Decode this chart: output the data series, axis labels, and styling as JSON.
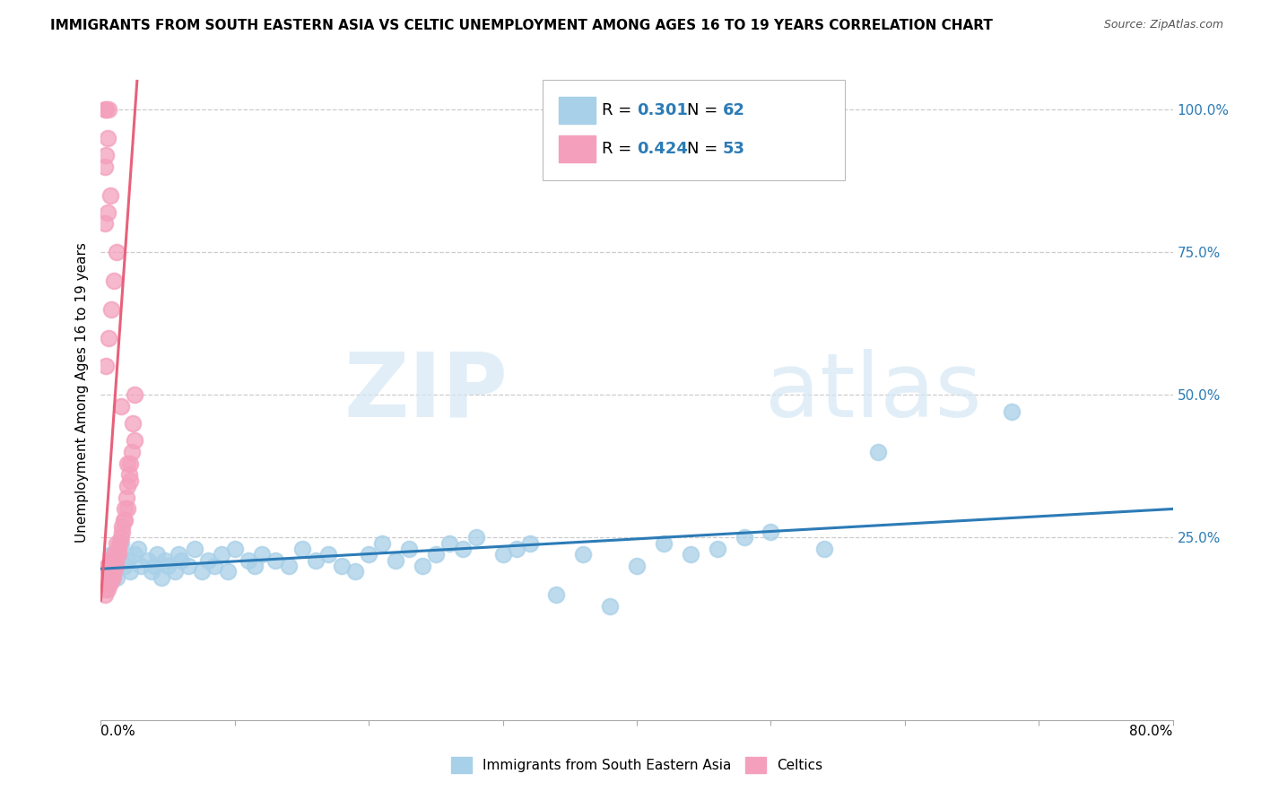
{
  "title": "IMMIGRANTS FROM SOUTH EASTERN ASIA VS CELTIC UNEMPLOYMENT AMONG AGES 16 TO 19 YEARS CORRELATION CHART",
  "source": "Source: ZipAtlas.com",
  "ylabel": "Unemployment Among Ages 16 to 19 years",
  "right_ytick_vals": [
    0.25,
    0.5,
    0.75,
    1.0
  ],
  "right_ytick_labels": [
    "25.0%",
    "50.0%",
    "75.0%",
    "100.0%"
  ],
  "xlim": [
    0.0,
    0.8
  ],
  "ylim": [
    -0.07,
    1.08
  ],
  "blue_scatter_color": "#a8d0e8",
  "pink_scatter_color": "#f4a0bc",
  "blue_line_color": "#2c7bb6",
  "pink_line_color": "#e8607a",
  "right_label_color": "#2c7bb6",
  "legend_blue_R": "0.301",
  "legend_blue_N": "62",
  "legend_pink_R": "0.424",
  "legend_pink_N": "53",
  "legend_label_blue": "Immigrants from South Eastern Asia",
  "legend_label_pink": "Celtics",
  "blue_scatter_x": [
    0.005,
    0.008,
    0.012,
    0.015,
    0.018,
    0.02,
    0.022,
    0.025,
    0.028,
    0.03,
    0.035,
    0.038,
    0.04,
    0.042,
    0.045,
    0.048,
    0.05,
    0.055,
    0.058,
    0.06,
    0.065,
    0.07,
    0.075,
    0.08,
    0.085,
    0.09,
    0.095,
    0.1,
    0.11,
    0.115,
    0.12,
    0.13,
    0.14,
    0.15,
    0.16,
    0.17,
    0.18,
    0.19,
    0.2,
    0.21,
    0.22,
    0.23,
    0.24,
    0.25,
    0.26,
    0.27,
    0.28,
    0.3,
    0.31,
    0.32,
    0.34,
    0.36,
    0.38,
    0.4,
    0.42,
    0.44,
    0.46,
    0.48,
    0.5,
    0.54,
    0.58,
    0.68
  ],
  "blue_scatter_y": [
    0.2,
    0.22,
    0.18,
    0.24,
    0.2,
    0.21,
    0.19,
    0.22,
    0.23,
    0.2,
    0.21,
    0.19,
    0.2,
    0.22,
    0.18,
    0.21,
    0.2,
    0.19,
    0.22,
    0.21,
    0.2,
    0.23,
    0.19,
    0.21,
    0.2,
    0.22,
    0.19,
    0.23,
    0.21,
    0.2,
    0.22,
    0.21,
    0.2,
    0.23,
    0.21,
    0.22,
    0.2,
    0.19,
    0.22,
    0.24,
    0.21,
    0.23,
    0.2,
    0.22,
    0.24,
    0.23,
    0.25,
    0.22,
    0.23,
    0.24,
    0.15,
    0.22,
    0.13,
    0.2,
    0.24,
    0.22,
    0.23,
    0.25,
    0.26,
    0.23,
    0.4,
    0.47
  ],
  "pink_scatter_x": [
    0.003,
    0.005,
    0.006,
    0.007,
    0.008,
    0.01,
    0.011,
    0.012,
    0.013,
    0.015,
    0.016,
    0.017,
    0.018,
    0.019,
    0.02,
    0.021,
    0.022,
    0.023,
    0.024,
    0.025,
    0.004,
    0.006,
    0.008,
    0.01,
    0.012,
    0.014,
    0.016,
    0.018,
    0.02,
    0.022,
    0.003,
    0.005,
    0.007,
    0.009,
    0.011,
    0.013,
    0.004,
    0.006,
    0.008,
    0.01,
    0.012,
    0.003,
    0.005,
    0.007,
    0.003,
    0.004,
    0.005,
    0.006,
    0.003,
    0.004,
    0.025,
    0.02,
    0.015
  ],
  "pink_scatter_y": [
    0.18,
    0.2,
    0.19,
    0.21,
    0.2,
    0.22,
    0.21,
    0.24,
    0.23,
    0.25,
    0.27,
    0.28,
    0.3,
    0.32,
    0.34,
    0.36,
    0.38,
    0.4,
    0.45,
    0.5,
    0.16,
    0.17,
    0.18,
    0.19,
    0.22,
    0.24,
    0.26,
    0.28,
    0.3,
    0.35,
    0.15,
    0.16,
    0.17,
    0.18,
    0.2,
    0.22,
    0.55,
    0.6,
    0.65,
    0.7,
    0.75,
    0.8,
    0.82,
    0.85,
    0.9,
    0.92,
    0.95,
    1.0,
    1.0,
    1.0,
    0.42,
    0.38,
    0.48
  ],
  "pink_line_x0": 0.0,
  "pink_line_y0": 0.14,
  "pink_line_x1": 0.027,
  "pink_line_y1": 1.05,
  "blue_line_x0": 0.0,
  "blue_line_y0": 0.195,
  "blue_line_x1": 0.8,
  "blue_line_y1": 0.3
}
